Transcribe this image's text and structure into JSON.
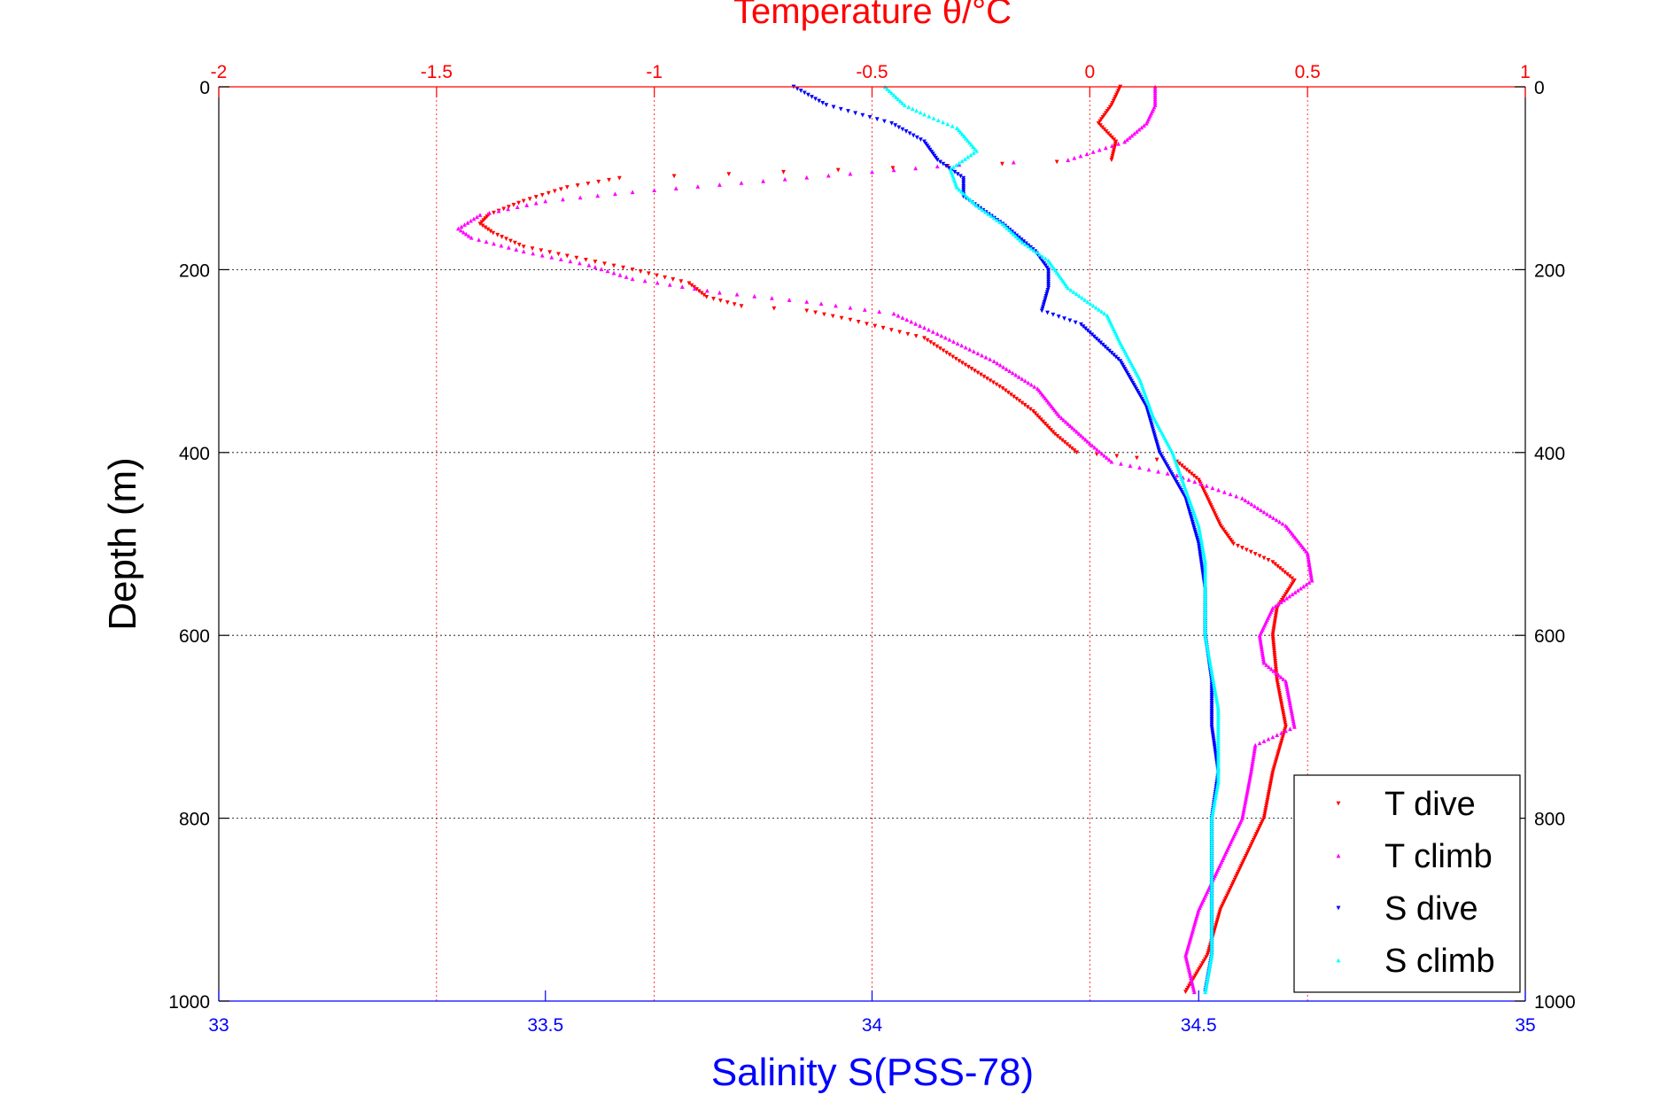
{
  "chart_data": {
    "type": "scatter",
    "title": "Temperature θ/°C",
    "xlabel": "Salinity S(PSS-78)",
    "ylabel": "Depth (m)",
    "top_axis": {
      "label": "Temperature θ/°C",
      "range": [
        -2,
        1
      ],
      "ticks": [
        "-2",
        "-1.5",
        "-1",
        "-0.5",
        "0",
        "0.5",
        "1"
      ],
      "color": "#ff0000"
    },
    "bottom_axis": {
      "label": "Salinity S(PSS-78)",
      "range": [
        33,
        35
      ],
      "ticks": [
        "33",
        "33.5",
        "34",
        "34.5",
        "35"
      ],
      "color": "#0000ff"
    },
    "y_axis": {
      "range": [
        0,
        1000
      ],
      "reversed": true,
      "ticks": [
        "0",
        "200",
        "400",
        "600",
        "800",
        "1000"
      ]
    },
    "grid": true,
    "legend_position": "bottom-right",
    "series": [
      {
        "name": "T dive",
        "axis": "top",
        "marker": "triangle-down",
        "color": "#ff0000",
        "points": [
          [
            0.07,
            0
          ],
          [
            0.05,
            20
          ],
          [
            0.02,
            40
          ],
          [
            0.06,
            60
          ],
          [
            0.05,
            80
          ],
          [
            -1.08,
            100
          ],
          [
            -1.2,
            110
          ],
          [
            -1.3,
            125
          ],
          [
            -1.38,
            140
          ],
          [
            -1.4,
            150
          ],
          [
            -1.37,
            160
          ],
          [
            -1.3,
            175
          ],
          [
            -1.2,
            185
          ],
          [
            -1.05,
            200
          ],
          [
            -0.92,
            215
          ],
          [
            -0.88,
            230
          ],
          [
            -0.8,
            240
          ],
          [
            -0.65,
            245
          ],
          [
            -0.55,
            255
          ],
          [
            -0.38,
            275
          ],
          [
            -0.3,
            300
          ],
          [
            -0.2,
            330
          ],
          [
            -0.13,
            355
          ],
          [
            -0.08,
            380
          ],
          [
            -0.03,
            400
          ],
          [
            0.2,
            410
          ],
          [
            0.25,
            430
          ],
          [
            0.28,
            460
          ],
          [
            0.3,
            480
          ],
          [
            0.33,
            500
          ],
          [
            0.42,
            520
          ],
          [
            0.47,
            540
          ],
          [
            0.43,
            570
          ],
          [
            0.42,
            600
          ],
          [
            0.43,
            650
          ],
          [
            0.45,
            700
          ],
          [
            0.42,
            750
          ],
          [
            0.4,
            800
          ],
          [
            0.35,
            850
          ],
          [
            0.3,
            900
          ],
          [
            0.27,
            950
          ],
          [
            0.22,
            990
          ]
        ]
      },
      {
        "name": "T climb",
        "axis": "top",
        "marker": "triangle-up",
        "color": "#ff00ff",
        "points": [
          [
            0.15,
            0
          ],
          [
            0.15,
            20
          ],
          [
            0.13,
            40
          ],
          [
            0.08,
            60
          ],
          [
            -0.05,
            80
          ],
          [
            -0.3,
            85
          ],
          [
            -0.55,
            95
          ],
          [
            -0.8,
            105
          ],
          [
            -1.05,
            115
          ],
          [
            -1.25,
            125
          ],
          [
            -1.4,
            140
          ],
          [
            -1.45,
            155
          ],
          [
            -1.42,
            165
          ],
          [
            -1.3,
            180
          ],
          [
            -1.15,
            195
          ],
          [
            -1.05,
            210
          ],
          [
            -0.85,
            225
          ],
          [
            -0.65,
            235
          ],
          [
            -0.45,
            248
          ],
          [
            -0.35,
            270
          ],
          [
            -0.22,
            300
          ],
          [
            -0.12,
            330
          ],
          [
            -0.07,
            360
          ],
          [
            0.0,
            390
          ],
          [
            0.05,
            410
          ],
          [
            0.2,
            425
          ],
          [
            0.35,
            450
          ],
          [
            0.45,
            480
          ],
          [
            0.5,
            510
          ],
          [
            0.51,
            540
          ],
          [
            0.42,
            570
          ],
          [
            0.39,
            600
          ],
          [
            0.4,
            630
          ],
          [
            0.45,
            650
          ],
          [
            0.47,
            700
          ],
          [
            0.38,
            720
          ],
          [
            0.37,
            750
          ],
          [
            0.35,
            800
          ],
          [
            0.3,
            850
          ],
          [
            0.25,
            900
          ],
          [
            0.22,
            950
          ],
          [
            0.24,
            990
          ]
        ]
      },
      {
        "name": "S dive",
        "axis": "bottom",
        "marker": "triangle-down",
        "color": "#0000ff",
        "points": [
          [
            33.88,
            0
          ],
          [
            33.93,
            20
          ],
          [
            34.03,
            40
          ],
          [
            34.08,
            60
          ],
          [
            34.1,
            80
          ],
          [
            34.14,
            100
          ],
          [
            34.14,
            120
          ],
          [
            34.2,
            150
          ],
          [
            34.25,
            180
          ],
          [
            34.27,
            200
          ],
          [
            34.27,
            220
          ],
          [
            34.26,
            245
          ],
          [
            34.32,
            260
          ],
          [
            34.38,
            300
          ],
          [
            34.42,
            350
          ],
          [
            34.44,
            400
          ],
          [
            34.48,
            450
          ],
          [
            34.5,
            500
          ],
          [
            34.51,
            550
          ],
          [
            34.51,
            600
          ],
          [
            34.52,
            650
          ],
          [
            34.52,
            700
          ],
          [
            34.53,
            750
          ],
          [
            34.52,
            800
          ],
          [
            34.52,
            850
          ],
          [
            34.52,
            900
          ],
          [
            34.52,
            950
          ],
          [
            34.51,
            990
          ]
        ]
      },
      {
        "name": "S climb",
        "axis": "bottom",
        "marker": "triangle-up",
        "color": "#00ffff",
        "points": [
          [
            34.02,
            0
          ],
          [
            34.05,
            20
          ],
          [
            34.08,
            30
          ],
          [
            34.13,
            45
          ],
          [
            34.16,
            70
          ],
          [
            34.12,
            90
          ],
          [
            34.13,
            110
          ],
          [
            34.16,
            130
          ],
          [
            34.2,
            150
          ],
          [
            34.23,
            170
          ],
          [
            34.27,
            190
          ],
          [
            34.3,
            220
          ],
          [
            34.36,
            250
          ],
          [
            34.38,
            280
          ],
          [
            34.41,
            320
          ],
          [
            34.43,
            360
          ],
          [
            34.46,
            400
          ],
          [
            34.48,
            440
          ],
          [
            34.5,
            480
          ],
          [
            34.51,
            520
          ],
          [
            34.51,
            560
          ],
          [
            34.51,
            600
          ],
          [
            34.52,
            640
          ],
          [
            34.53,
            680
          ],
          [
            34.53,
            720
          ],
          [
            34.53,
            760
          ],
          [
            34.52,
            800
          ],
          [
            34.52,
            850
          ],
          [
            34.52,
            900
          ],
          [
            34.52,
            950
          ],
          [
            34.51,
            990
          ]
        ]
      }
    ]
  }
}
